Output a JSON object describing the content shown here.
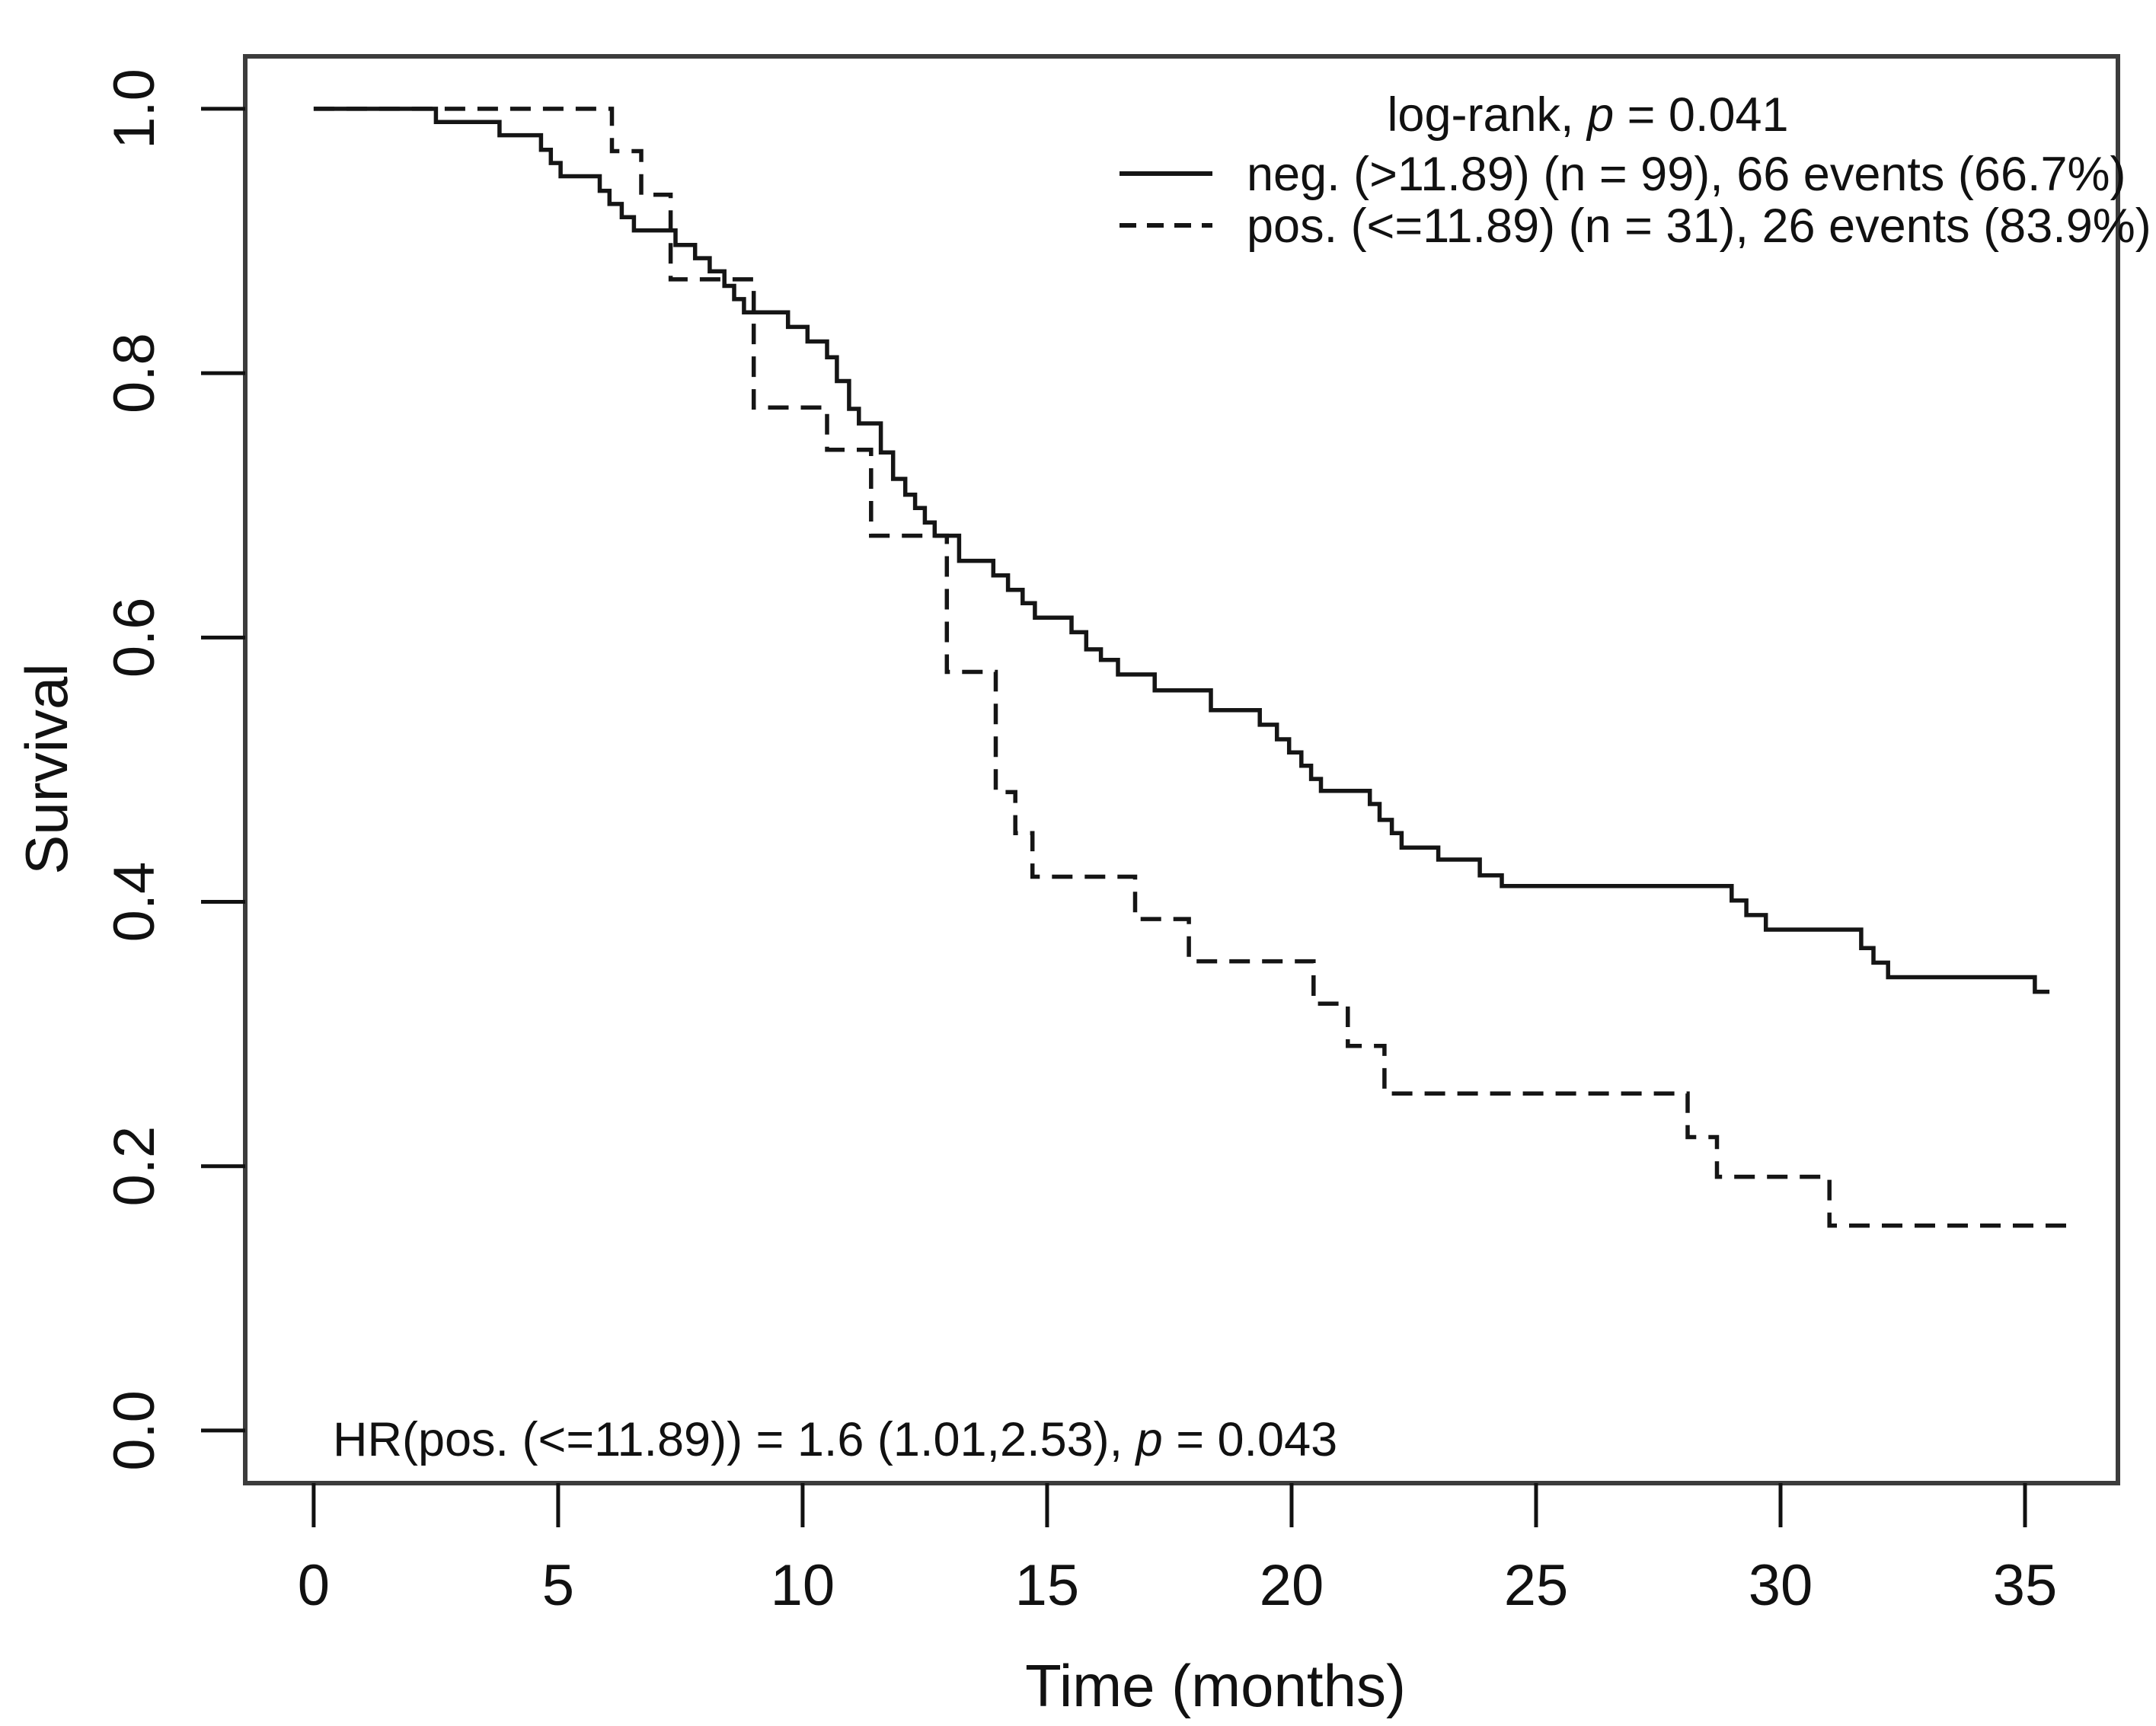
{
  "chart_data": {
    "type": "line",
    "subtype": "kaplan-meier-step",
    "title": "",
    "xlabel": "Time (months)",
    "ylabel": "Survival",
    "xlim": [
      -1.4,
      36.9
    ],
    "ylim": [
      -0.0398,
      1.0397
    ],
    "grid": false,
    "x_ticks": {
      "values": [
        0,
        5,
        10,
        15,
        20,
        25,
        30,
        35
      ],
      "labels": [
        "0",
        "5",
        "10",
        "15",
        "20",
        "25",
        "30",
        "35"
      ]
    },
    "y_ticks": {
      "values": [
        0.0,
        0.2,
        0.4,
        0.6,
        0.8,
        1.0
      ],
      "labels": [
        "0.0",
        "0.2",
        "0.4",
        "0.6",
        "0.8",
        "1.0"
      ]
    },
    "legend": {
      "position": "top-right",
      "logrank": {
        "prefix": "log-rank, ",
        "italic": "p",
        "suffix": " = 0.041"
      },
      "rows": [
        {
          "style": "solid",
          "label": "neg. (>11.89) (n = 99), 66 events (66.7%)"
        },
        {
          "style": "dashed",
          "label": "pos. (<=11.89) (n = 31), 26 events (83.9%)"
        }
      ]
    },
    "annotation_hr": {
      "prefix": "HR(pos. (<=11.89)) = 1.6 (1.01,2.53), ",
      "italic": "p",
      "suffix": " = 0.043"
    },
    "series": [
      {
        "name": "neg. (>11.89)",
        "n": 99,
        "events": 66,
        "events_pct": "66.7%",
        "style": "solid",
        "color": "#151515",
        "end_time": 35.5,
        "points": [
          [
            0,
            1.0
          ],
          [
            2.5,
            0.99
          ],
          [
            3.8,
            0.98
          ],
          [
            4.65,
            0.969
          ],
          [
            4.85,
            0.959
          ],
          [
            5.05,
            0.949
          ],
          [
            5.85,
            0.938
          ],
          [
            6.05,
            0.928
          ],
          [
            6.3,
            0.918
          ],
          [
            6.55,
            0.908
          ],
          [
            7.4,
            0.897
          ],
          [
            7.8,
            0.887
          ],
          [
            8.1,
            0.877
          ],
          [
            8.4,
            0.866
          ],
          [
            8.6,
            0.856
          ],
          [
            8.8,
            0.846
          ],
          [
            9.7,
            0.835
          ],
          [
            10.1,
            0.824
          ],
          [
            10.5,
            0.812
          ],
          [
            10.7,
            0.794
          ],
          [
            10.95,
            0.773
          ],
          [
            11.15,
            0.762
          ],
          [
            11.6,
            0.74
          ],
          [
            11.85,
            0.72
          ],
          [
            12.1,
            0.708
          ],
          [
            12.3,
            0.698
          ],
          [
            12.5,
            0.687
          ],
          [
            12.7,
            0.677
          ],
          [
            13.2,
            0.658
          ],
          [
            13.9,
            0.647
          ],
          [
            14.2,
            0.636
          ],
          [
            14.5,
            0.626
          ],
          [
            14.75,
            0.615
          ],
          [
            15.5,
            0.604
          ],
          [
            15.8,
            0.591
          ],
          [
            16.1,
            0.583
          ],
          [
            16.45,
            0.572
          ],
          [
            17.2,
            0.56
          ],
          [
            18.35,
            0.545
          ],
          [
            19.35,
            0.534
          ],
          [
            19.7,
            0.523
          ],
          [
            19.95,
            0.513
          ],
          [
            20.2,
            0.503
          ],
          [
            20.4,
            0.493
          ],
          [
            20.6,
            0.484
          ],
          [
            21.6,
            0.474
          ],
          [
            21.8,
            0.462
          ],
          [
            22.05,
            0.452
          ],
          [
            22.25,
            0.441
          ],
          [
            23.0,
            0.432
          ],
          [
            23.85,
            0.42
          ],
          [
            24.3,
            0.412
          ],
          [
            29.0,
            0.401
          ],
          [
            29.3,
            0.39
          ],
          [
            29.7,
            0.379
          ],
          [
            31.65,
            0.365
          ],
          [
            31.9,
            0.354
          ],
          [
            32.2,
            0.343
          ],
          [
            35.2,
            0.332
          ]
        ]
      },
      {
        "name": "pos. (<=11.89)",
        "n": 31,
        "events": 26,
        "events_pct": "83.9%",
        "style": "dashed",
        "color": "#151515",
        "end_time": 35.9,
        "points": [
          [
            0,
            1.0
          ],
          [
            6.1,
            0.968
          ],
          [
            6.7,
            0.935
          ],
          [
            7.3,
            0.871
          ],
          [
            9.0,
            0.774
          ],
          [
            10.5,
            0.742
          ],
          [
            11.4,
            0.677
          ],
          [
            12.95,
            0.574
          ],
          [
            13.95,
            0.483
          ],
          [
            14.35,
            0.452
          ],
          [
            14.7,
            0.419
          ],
          [
            16.8,
            0.387
          ],
          [
            17.9,
            0.355
          ],
          [
            20.45,
            0.323
          ],
          [
            21.15,
            0.291
          ],
          [
            21.9,
            0.255
          ],
          [
            28.1,
            0.222
          ],
          [
            28.7,
            0.192
          ],
          [
            31.0,
            0.155
          ]
        ]
      }
    ]
  }
}
